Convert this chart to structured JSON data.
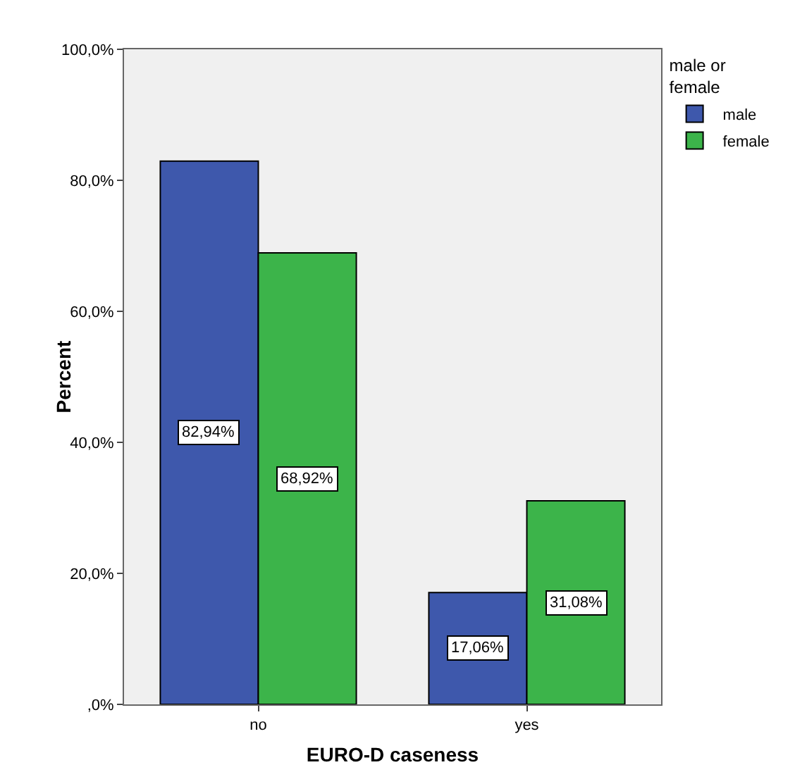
{
  "chart_data": {
    "type": "bar",
    "xlabel": "EURO-D caseness",
    "ylabel": "Percent",
    "legend_title": "male or female",
    "legend": "top right",
    "grid": false,
    "categories": [
      "no",
      "yes"
    ],
    "series": [
      {
        "name": "male",
        "color": "#3e58ac",
        "values": [
          82.94,
          17.06
        ],
        "value_labels": [
          "82,94%",
          "17,06%"
        ]
      },
      {
        "name": "female",
        "color": "#3cb44a",
        "values": [
          68.92,
          31.08
        ],
        "value_labels": [
          "68,92%",
          "31,08%"
        ]
      }
    ],
    "ylim": [
      0,
      100
    ],
    "yticks": [
      {
        "value": 0,
        "label": ",0%"
      },
      {
        "value": 20,
        "label": "20,0%"
      },
      {
        "value": 40,
        "label": "40,0%"
      },
      {
        "value": 60,
        "label": "60,0%"
      },
      {
        "value": 80,
        "label": "80,0%"
      },
      {
        "value": 100,
        "label": "100,0%"
      }
    ]
  }
}
